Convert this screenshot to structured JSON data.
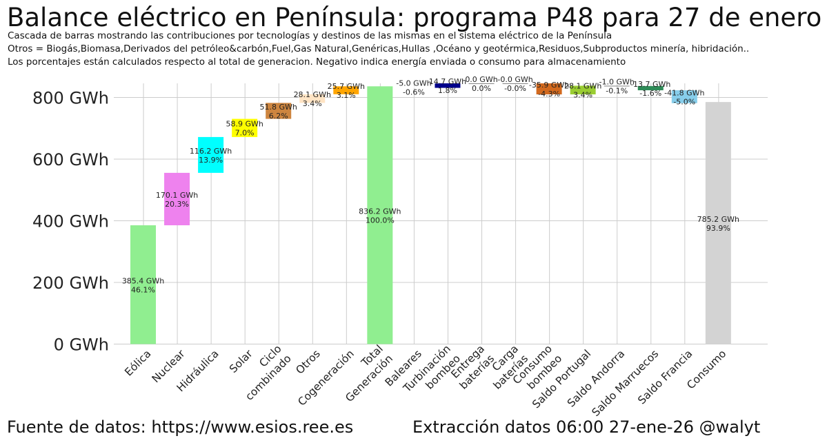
{
  "header": {
    "title": "Balance eléctrico en Península: programa P48 para 27 de enero",
    "subtitle_lines": [
      "Cascada de barras mostrando las contribuciones por tecnologías y destinos de las mismas en el sistema eléctrico de la Península",
      "Otros = Biogás,Biomasa,Derivados del petróleo&carbón,Fuel,Gas Natural,Genéricas,Hullas ,Océano y geotérmica,Residuos,Subproductos minería, hibridación..",
      "Los porcentajes están calculados respecto al total de generacion. Negativo indica energía enviada o consumo para almacenamiento"
    ]
  },
  "footer": {
    "source": "Fuente de datos: https://www.esios.ree.es",
    "extraction": "Extracción datos 06:00 27-ene-26  @walyt"
  },
  "chart_data": {
    "type": "bar",
    "subtype": "waterfall",
    "ylim": [
      0,
      850
    ],
    "yticks": [
      0,
      200,
      400,
      600,
      800
    ],
    "ytick_labels": [
      "0 GWh",
      "200 GWh",
      "400 GWh",
      "600 GWh",
      "800 GWh"
    ],
    "grid": true,
    "bars": [
      {
        "category": "Eólica",
        "value": 385.4,
        "base": 0,
        "label": "385.4 GWh",
        "pct": "46.1%",
        "color": "#90ee90"
      },
      {
        "category": "Nuclear",
        "value": 170.1,
        "base": 385.4,
        "label": "170.1 GWh",
        "pct": "20.3%",
        "color": "#ee82ee"
      },
      {
        "category": "Hidráulica",
        "value": 116.2,
        "base": 555.5,
        "label": "116.2 GWh",
        "pct": "13.9%",
        "color": "#00ffff"
      },
      {
        "category": "Solar",
        "value": 58.9,
        "base": 671.7,
        "label": "58.9 GWh",
        "pct": "7.0%",
        "color": "#ffff00"
      },
      {
        "category": "Ciclo\ncombinado",
        "value": 51.8,
        "base": 730.6,
        "label": "51.8 GWh",
        "pct": "6.2%",
        "color": "#cd853f"
      },
      {
        "category": "Otros",
        "value": 28.1,
        "base": 782.4,
        "label": "28.1 GWh",
        "pct": "3.4%",
        "color": "#ffe4c4"
      },
      {
        "category": "Cogeneración",
        "value": 25.7,
        "base": 810.5,
        "label": "25.7 GWh",
        "pct": "3.1%",
        "color": "#ffa500"
      },
      {
        "category": "Total\nGeneración",
        "value": 836.2,
        "base": 0,
        "label": "836.2 GWh",
        "pct": "100.0%",
        "color": "#90ee90"
      },
      {
        "category": "Baleares",
        "value": -5.0,
        "base": 836.2,
        "label": "-5.0 GWh",
        "pct": "-0.6%",
        "color": "#ffffff"
      },
      {
        "category": "Turbinación\nbombeo",
        "value": 14.7,
        "base": 831.2,
        "label": "14.7 GWh",
        "pct": "1.8%",
        "color": "#00008b"
      },
      {
        "category": "Entrega\nbaterías",
        "value": 0.0,
        "base": 845.9,
        "label": "0.0 GWh",
        "pct": "0.0%",
        "color": "#808080"
      },
      {
        "category": "Carga\nbaterías",
        "value": -0.0,
        "base": 845.9,
        "label": "-0.0 GWh",
        "pct": "-0.0%",
        "color": "#808080"
      },
      {
        "category": "Consumo\nbombeo",
        "value": -35.9,
        "base": 845.9,
        "label": "-35.9 GWh",
        "pct": "-4.3%",
        "color": "#d2691e"
      },
      {
        "category": "Saldo Portugal",
        "value": 28.1,
        "base": 810.0,
        "label": "28.1 GWh",
        "pct": "3.4%",
        "color": "#9acd32"
      },
      {
        "category": "Saldo Andorra",
        "value": -1.0,
        "base": 838.1,
        "label": "-1.0 GWh",
        "pct": "-0.1%",
        "color": "#808080"
      },
      {
        "category": "Saldo Marruecos",
        "value": -13.7,
        "base": 837.1,
        "label": "-13.7 GWh",
        "pct": "-1.6%",
        "color": "#2e8b57"
      },
      {
        "category": "Saldo Francia",
        "value": -41.8,
        "base": 823.4,
        "label": "-41.8 GWh",
        "pct": "-5.0%",
        "color": "#87ceeb"
      },
      {
        "category": "Consumo",
        "value": 785.2,
        "base": 0,
        "label": "785.2 GWh",
        "pct": "93.9%",
        "color": "#d3d3d3"
      }
    ]
  }
}
